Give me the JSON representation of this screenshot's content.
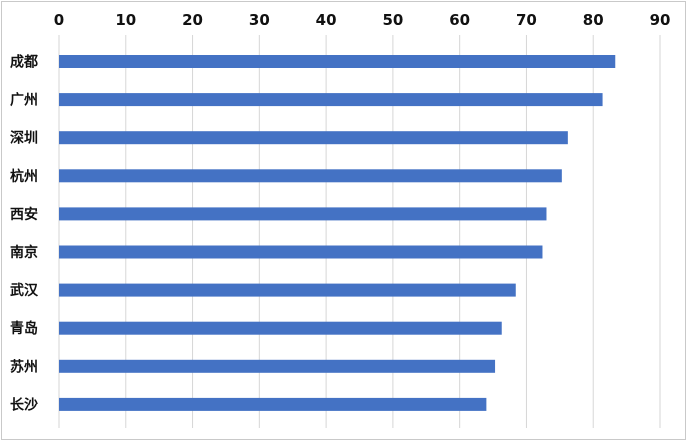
{
  "chart_data": {
    "type": "bar",
    "orientation": "horizontal",
    "title": "",
    "xlabel": "",
    "ylabel": "",
    "categories": [
      "成都",
      "广州",
      "深圳",
      "杭州",
      "西安",
      "南京",
      "武汉",
      "青岛",
      "苏州",
      "长沙"
    ],
    "values": [
      83.3,
      81.4,
      76.2,
      75.3,
      73.0,
      72.4,
      68.4,
      66.3,
      65.3,
      64.0
    ],
    "xlim": [
      0,
      90
    ],
    "xticks": [
      0,
      10,
      20,
      30,
      40,
      50,
      60,
      70,
      80,
      90
    ],
    "tick_position": "top",
    "grid": true,
    "legend": "none",
    "bar_color": "#4472C4"
  }
}
